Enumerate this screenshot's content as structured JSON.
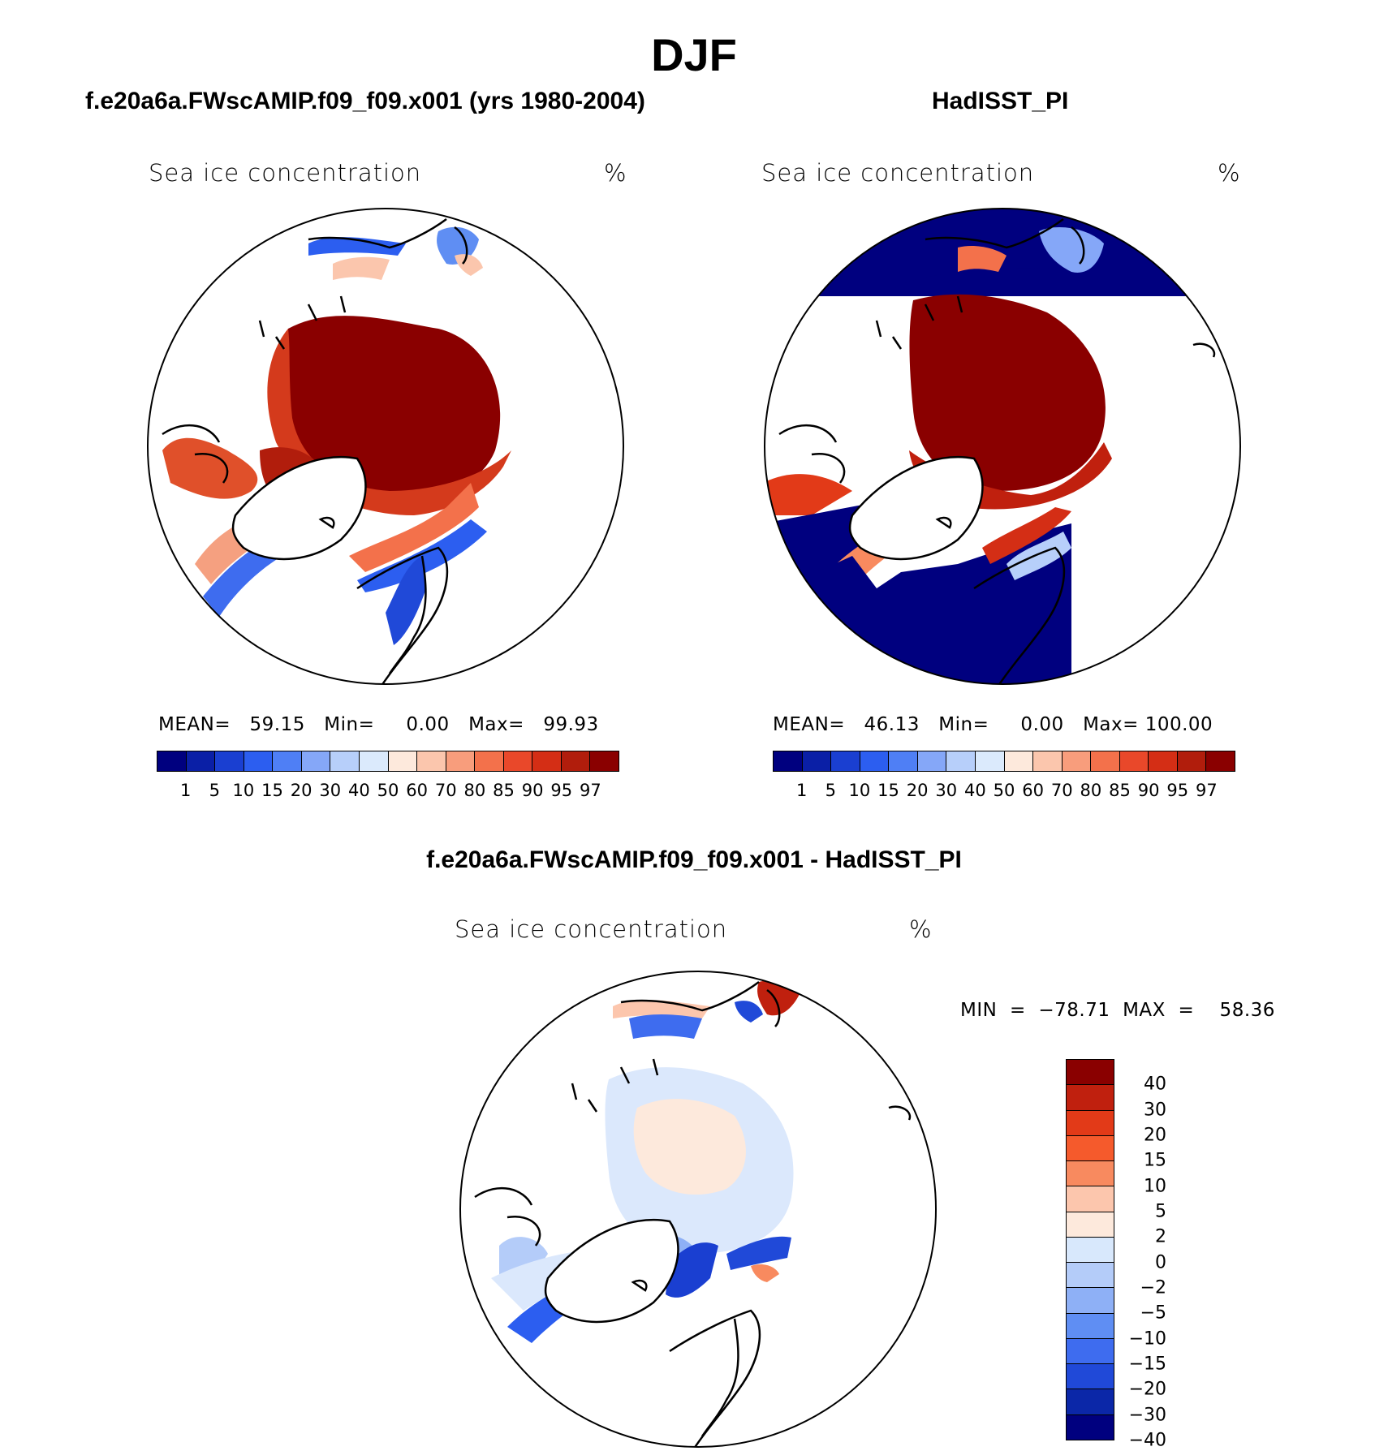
{
  "title": "DJF",
  "panels": {
    "left": {
      "title": "f.e20a6a.FWscAMIP.f09_f09.x001 (yrs 1980-2004)",
      "var_label": "Sea ice concentration",
      "unit": "%",
      "stats": "MEAN=   59.15   Min=     0.00   Max=   99.93"
    },
    "right": {
      "title": "HadISST_PI",
      "var_label": "Sea ice concentration",
      "unit": "%",
      "stats": "MEAN=   46.13   Min=     0.00   Max= 100.00"
    },
    "diff": {
      "title": "f.e20a6a.FWscAMIP.f09_f09.x001 - HadISST_PI",
      "var_label": "Sea ice concentration",
      "unit": "%",
      "stats": "MIN  =  −78.71  MAX  =    58.36"
    }
  },
  "colorbar_abs": {
    "labels": [
      "1",
      "5",
      "10",
      "15",
      "20",
      "30",
      "40",
      "50",
      "60",
      "70",
      "80",
      "85",
      "90",
      "95",
      "97"
    ],
    "colors": [
      "#00007f",
      "#0a1fa6",
      "#1a3fd1",
      "#2c5ef0",
      "#4f7ff5",
      "#85a7f8",
      "#b7cffa",
      "#dbeafc",
      "#fde9dc",
      "#fbc6ad",
      "#f89d7c",
      "#f3714b",
      "#e9482a",
      "#d42e15",
      "#b11d0c",
      "#8a0000"
    ]
  },
  "colorbar_diff": {
    "labels": [
      "40",
      "30",
      "20",
      "15",
      "10",
      "5",
      "2",
      "0",
      "−2",
      "−5",
      "−10",
      "−15",
      "−20",
      "−30",
      "−40"
    ],
    "colors": [
      "#8a0000",
      "#c0200e",
      "#e23a18",
      "#f55a2c",
      "#f88a5f",
      "#fcc6ad",
      "#fde9dc",
      "#d8e8fc",
      "#b4ccf9",
      "#8eb0f6",
      "#5f8ef3",
      "#3e6cef",
      "#2049d8",
      "#0b27a8",
      "#00007f"
    ]
  }
}
